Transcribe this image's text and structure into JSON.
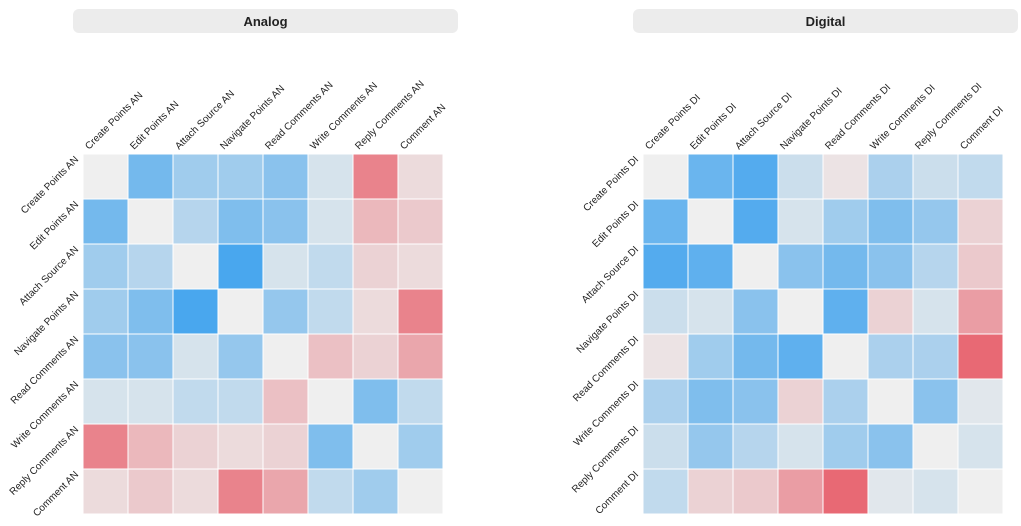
{
  "chart_data": [
    {
      "type": "heatmap",
      "title": "Analog",
      "row_labels": [
        "Create Points AN",
        "Edit Points AN",
        "Attach Source AN",
        "Navigate Points AN",
        "Read Comments AN",
        "Write Comments AN",
        "Reply Comments AN",
        "Comment AN"
      ],
      "col_labels": [
        "Create Points AN",
        "Edit Points AN",
        "Attach Source AN",
        "Navigate Points AN",
        "Read Comments AN",
        "Write Comments AN",
        "Reply Comments AN",
        "Comment AN"
      ],
      "values": [
        [
          1.0,
          0.55,
          0.35,
          0.35,
          0.45,
          0.1,
          -0.6,
          -0.1
        ],
        [
          0.55,
          1.0,
          0.25,
          0.5,
          0.45,
          0.1,
          -0.3,
          -0.2
        ],
        [
          0.35,
          0.25,
          1.0,
          0.75,
          0.1,
          0.2,
          -0.15,
          -0.1
        ],
        [
          0.35,
          0.5,
          0.75,
          1.0,
          0.4,
          0.2,
          -0.1,
          -0.6
        ],
        [
          0.45,
          0.45,
          0.1,
          0.4,
          1.0,
          -0.25,
          -0.15,
          -0.4
        ],
        [
          0.1,
          0.1,
          0.2,
          0.2,
          -0.25,
          1.0,
          0.5,
          0.2
        ],
        [
          -0.6,
          -0.3,
          -0.15,
          -0.1,
          -0.15,
          0.5,
          1.0,
          0.35
        ],
        [
          -0.1,
          -0.2,
          -0.1,
          -0.6,
          -0.4,
          0.2,
          0.35,
          1.0
        ]
      ],
      "color_range": [
        -1,
        1
      ],
      "colors": {
        "positive": "#3ea2ee",
        "negative": "#e8606c",
        "neutral": "#ececec",
        "diagonal": "#efefef"
      }
    },
    {
      "type": "heatmap",
      "title": "Digital",
      "row_labels": [
        "Create Points DI",
        "Edit Points DI",
        "Attach Source DI",
        "Navigate Points DI",
        "Read Comments DI",
        "Write Comments DI",
        "Reply Comments DI",
        "Comment DI"
      ],
      "col_labels": [
        "Create Points DI",
        "Edit Points DI",
        "Attach Source DI",
        "Navigate Points DI",
        "Read Comments DI",
        "Write Comments DI",
        "Reply Comments DI",
        "Comment DI"
      ],
      "values": [
        [
          1.0,
          0.6,
          0.7,
          0.15,
          -0.05,
          0.3,
          0.15,
          0.2
        ],
        [
          0.6,
          1.0,
          0.7,
          0.1,
          0.35,
          0.5,
          0.4,
          -0.15
        ],
        [
          0.7,
          0.65,
          1.0,
          0.45,
          0.55,
          0.45,
          0.25,
          -0.2
        ],
        [
          0.15,
          0.1,
          0.45,
          1.0,
          0.65,
          -0.15,
          0.1,
          -0.45
        ],
        [
          -0.05,
          0.35,
          0.55,
          0.65,
          1.0,
          0.3,
          0.3,
          -0.75
        ],
        [
          0.3,
          0.5,
          0.45,
          -0.15,
          0.3,
          1.0,
          0.45,
          0.05
        ],
        [
          0.15,
          0.4,
          0.25,
          0.1,
          0.35,
          0.45,
          1.0,
          0.1
        ],
        [
          0.2,
          -0.15,
          -0.2,
          -0.45,
          -0.75,
          0.05,
          0.1,
          1.0
        ]
      ],
      "color_range": [
        -1,
        1
      ],
      "colors": {
        "positive": "#3ea2ee",
        "negative": "#e8606c",
        "neutral": "#ececec",
        "diagonal": "#efefef"
      }
    }
  ]
}
